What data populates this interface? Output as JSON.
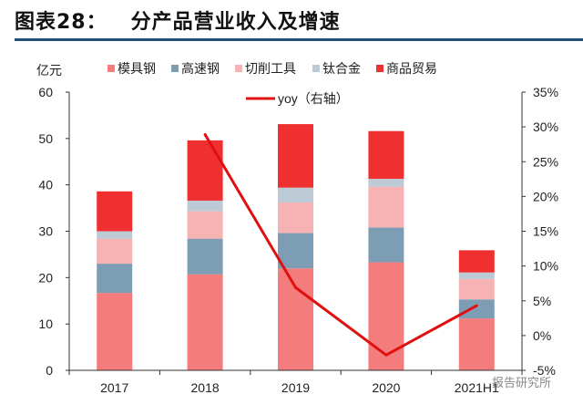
{
  "header": {
    "figure_label": "图表28：",
    "title": "分产品营业收入及增速"
  },
  "watermark": "报告研究所",
  "chart_data": {
    "type": "bar",
    "stacked": true,
    "categories": [
      "2017",
      "2018",
      "2019",
      "2020",
      "2021H1"
    ],
    "ylabel": "亿元",
    "ylim": [
      0,
      60
    ],
    "yticks": [
      0,
      10,
      20,
      30,
      40,
      50,
      60
    ],
    "y2lim": [
      -5,
      35
    ],
    "y2ticks": [
      "-5%",
      "0%",
      "5%",
      "10%",
      "15%",
      "20%",
      "25%",
      "30%",
      "35%"
    ],
    "grid": false,
    "legend_position": "top",
    "series": [
      {
        "name": "模具钢",
        "color": "#f47c7c",
        "values": [
          16.7,
          20.7,
          22.0,
          23.3,
          11.2
        ]
      },
      {
        "name": "高速钢",
        "color": "#7d9db5",
        "values": [
          6.3,
          7.7,
          7.6,
          7.5,
          4.1
        ]
      },
      {
        "name": "切削工具",
        "color": "#f7b3b3",
        "values": [
          5.4,
          5.9,
          6.6,
          8.8,
          4.4
        ]
      },
      {
        "name": "钛合金",
        "color": "#bccad6",
        "values": [
          1.6,
          2.3,
          3.2,
          1.7,
          1.4
        ]
      },
      {
        "name": "商品贸易",
        "color": "#f03030",
        "values": [
          8.6,
          13.0,
          13.7,
          10.3,
          4.8
        ]
      }
    ],
    "line": {
      "name": "yoy（右轴）",
      "color": "#e01010",
      "axis": "right",
      "unit": "%",
      "x": [
        "2018",
        "2019",
        "2020",
        "2021H1"
      ],
      "values": [
        28.9,
        6.9,
        -2.8,
        4.3
      ]
    }
  }
}
